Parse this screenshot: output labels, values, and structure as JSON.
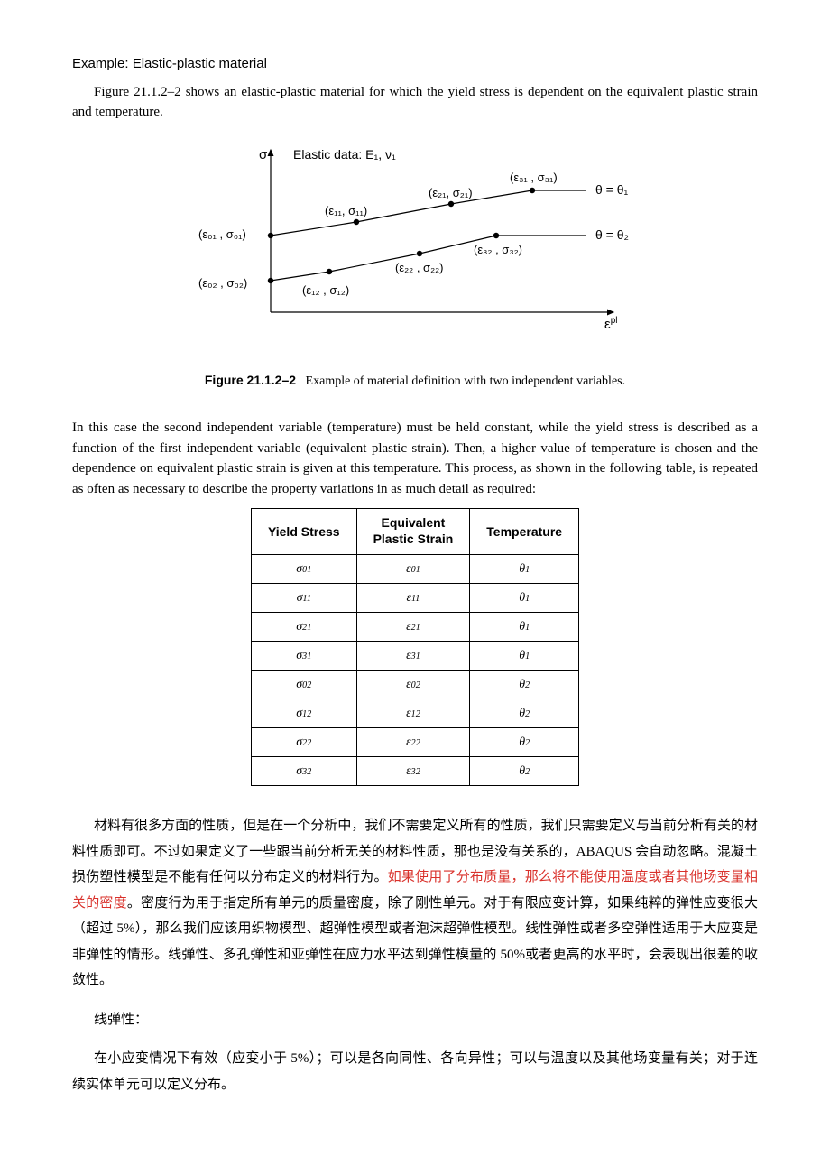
{
  "section_title": "Example: Elastic-plastic material",
  "intro": "Figure 21.1.2–2 shows an elastic-plastic material for which the yield stress is dependent on the equivalent plastic strain and temperature.",
  "figure": {
    "elastic_label": "Elastic data: E₁, ν₁",
    "sigma": "σ",
    "eps_pl": "ε",
    "eps_pl_sup": "pl",
    "theta1": "θ = θ₁",
    "theta2": "θ = θ₂",
    "pt_e01": "(ε₀₁ , σ₀₁)",
    "pt_e02": "(ε₀₂ , σ₀₂)",
    "pt_e11": "(ε₁₁, σ₁₁)",
    "pt_e12": "(ε₁₂ , σ₁₂)",
    "pt_e21": "(ε₂₁, σ₂₁)",
    "pt_e22": "(ε₂₂ , σ₂₂)",
    "pt_e31": "(ε₃₁ , σ₃₁)",
    "pt_e32": "(ε₃₂ , σ₃₂)",
    "caption_bold": "Figure 21.1.2–2",
    "caption_rest": "Example of material definition with two independent variables."
  },
  "mid_para": "In this case the second independent variable (temperature) must be held constant, while the yield stress is described as a function of the first independent variable (equivalent plastic strain). Then, a higher value of temperature is chosen and the dependence on equivalent plastic strain is given at this temperature. This process, as shown in the following table, is repeated as often as necessary to describe the property variations in as much detail as required:",
  "table": {
    "headers": [
      "Yield Stress",
      "Equivalent Plastic Strain",
      "Temperature"
    ],
    "rows": [
      [
        "σ",
        "01",
        "ε",
        "01",
        "θ",
        "1"
      ],
      [
        "σ",
        "11",
        "ε",
        "11",
        "θ",
        "1"
      ],
      [
        "σ",
        "21",
        "ε",
        "21",
        "θ",
        "1"
      ],
      [
        "σ",
        "31",
        "ε",
        "31",
        "θ",
        "1"
      ],
      [
        "σ",
        "02",
        "ε",
        "02",
        "θ",
        "2"
      ],
      [
        "σ",
        "12",
        "ε",
        "12",
        "θ",
        "2"
      ],
      [
        "σ",
        "22",
        "ε",
        "22",
        "θ",
        "2"
      ],
      [
        "σ",
        "32",
        "ε",
        "32",
        "θ",
        "2"
      ]
    ]
  },
  "cjk_para1_a": "材料有很多方面的性质，但是在一个分析中，我们不需要定义所有的性质，我们只需要定义与当前分析有关的材料性质即可。不过如果定义了一些跟当前分析无关的材料性质，那也是没有关系的，ABAQUS 会自动忽略。混凝土损伤塑性模型是不能有任何以分布定义的材料行为。",
  "cjk_para1_hl": "如果使用了分布质量，那么将不能使用温度或者其他场变量相关的密度",
  "cjk_para1_b": "。密度行为用于指定所有单元的质量密度，除了刚性单元。对于有限应变计算，如果纯粹的弹性应变很大（超过 5%），那么我们应该用织物模型、超弹性模型或者泡沫超弹性模型。线性弹性或者多空弹性适用于大应变是非弹性的情形。线弹性、多孔弹性和亚弹性在应力水平达到弹性模量的 50%或者更高的水平时，会表现出很差的收敛性。",
  "cjk_heading": "线弹性：",
  "cjk_para2": "在小应变情况下有效（应变小于 5%）；可以是各向同性、各向异性；可以与温度以及其他场变量有关；对于连续实体单元可以定义分布。"
}
